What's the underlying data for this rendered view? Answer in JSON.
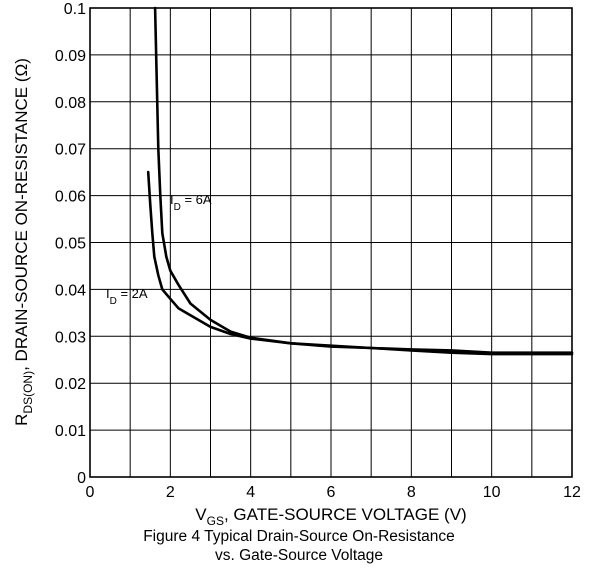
{
  "chart_data": {
    "type": "line",
    "xlabel": {
      "main": "V",
      "sub": "GS",
      "rest": ", GATE-SOURCE VOLTAGE (V)"
    },
    "ylabel": {
      "main": "R",
      "sub": "DS(ON)",
      "rest": ", DRAIN-SOURCE ON-RESISTANCE (Ω)"
    },
    "xlim": [
      0,
      12
    ],
    "ylim": [
      0,
      0.1
    ],
    "x_ticks": [
      "0",
      "2",
      "4",
      "6",
      "8",
      "10",
      "12"
    ],
    "y_ticks": [
      "0",
      "0.01",
      "0.02",
      "0.03",
      "0.04",
      "0.05",
      "0.06",
      "0.07",
      "0.08",
      "0.09",
      "0.1"
    ],
    "grid": true,
    "series": [
      {
        "name": "I_D = 6A",
        "label": {
          "main": "I",
          "sub": "D",
          "rest": " = 6A"
        },
        "x": [
          1.62,
          1.66,
          1.7,
          1.75,
          1.8,
          1.9,
          2.0,
          2.2,
          2.5,
          3.0,
          3.5,
          4.0,
          5.0,
          6.0,
          7.0,
          8.0,
          9.0,
          10.0,
          11.0,
          12.0
        ],
        "y": [
          0.1,
          0.085,
          0.07,
          0.06,
          0.052,
          0.047,
          0.044,
          0.041,
          0.037,
          0.0335,
          0.031,
          0.0297,
          0.0285,
          0.0278,
          0.0275,
          0.0272,
          0.027,
          0.0265,
          0.0265,
          0.0265
        ]
      },
      {
        "name": "I_D = 2A",
        "label": {
          "main": "I",
          "sub": "D",
          "rest": " = 2A"
        },
        "x": [
          1.45,
          1.5,
          1.55,
          1.6,
          1.7,
          1.8,
          2.0,
          2.2,
          2.5,
          3.0,
          3.5,
          4.0,
          5.0,
          6.0,
          7.0,
          8.0,
          9.0,
          10.0,
          11.0,
          12.0
        ],
        "y": [
          0.065,
          0.058,
          0.052,
          0.047,
          0.043,
          0.04,
          0.038,
          0.036,
          0.0345,
          0.032,
          0.0305,
          0.0295,
          0.0285,
          0.028,
          0.0275,
          0.027,
          0.0265,
          0.0262,
          0.0262,
          0.0262
        ]
      }
    ]
  },
  "caption": {
    "line1": "Figure 4 Typical Drain-Source On-Resistance",
    "line2": "vs. Gate-Source Voltage"
  }
}
